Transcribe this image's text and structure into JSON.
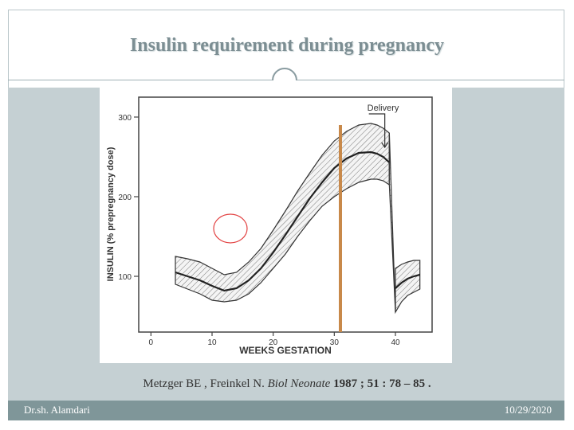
{
  "slide": {
    "title": "Insulin requirement during pregnancy",
    "citation": {
      "authors": "Metzger BE , Freinkel N.",
      "journal": "Biol Neonate",
      "year_vol": "1987 ; 51 : 78 – 85 ."
    },
    "footer_left": "Dr.sh. Alamdari",
    "footer_right": "10/29/2020",
    "colors": {
      "title": "#7c8e93",
      "band": "#c5d0d3",
      "footer": "#7f9699",
      "orange_marker": "#c8894a",
      "red_circle": "#e24040"
    }
  },
  "chart_data": {
    "type": "area",
    "xlabel": "WEEKS GESTATION",
    "ylabel": "INSULIN (% prepregnancy dose)",
    "xlim": [
      -2,
      46
    ],
    "ylim": [
      30,
      325
    ],
    "xticks": [
      0,
      10,
      20,
      30,
      40
    ],
    "yticks": [
      100,
      200,
      300
    ],
    "annotation": "Delivery",
    "pregnancy": {
      "x": [
        4,
        6,
        8,
        10,
        12,
        14,
        16,
        18,
        20,
        22,
        24,
        26,
        28,
        30,
        32,
        34,
        36,
        37,
        38,
        39
      ],
      "mean": [
        105,
        100,
        95,
        88,
        82,
        85,
        95,
        110,
        130,
        152,
        175,
        198,
        218,
        236,
        248,
        255,
        256,
        254,
        250,
        243
      ],
      "upper": [
        125,
        122,
        118,
        110,
        102,
        105,
        118,
        135,
        158,
        182,
        207,
        230,
        252,
        270,
        282,
        290,
        292,
        290,
        286,
        280
      ],
      "lower": [
        90,
        84,
        78,
        70,
        68,
        70,
        78,
        92,
        110,
        128,
        150,
        170,
        188,
        200,
        210,
        218,
        222,
        222,
        220,
        215
      ]
    },
    "postpartum": {
      "x": [
        40,
        41,
        42,
        43,
        44
      ],
      "mean": [
        85,
        92,
        97,
        100,
        102
      ],
      "upper": [
        110,
        115,
        118,
        120,
        120
      ],
      "lower": [
        55,
        68,
        76,
        80,
        84
      ]
    },
    "highlight_week": 31,
    "circle_marker": {
      "x": 13,
      "y": 160
    }
  }
}
